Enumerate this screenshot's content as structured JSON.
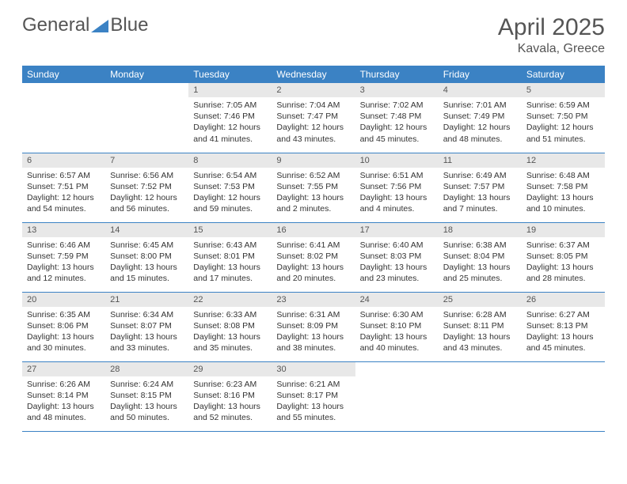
{
  "logo": {
    "text1": "General",
    "text2": "Blue"
  },
  "title": "April 2025",
  "location": "Kavala, Greece",
  "colors": {
    "accent": "#3b82c4",
    "dayBg": "#e8e8e8",
    "text": "#333333"
  },
  "weekdays": [
    "Sunday",
    "Monday",
    "Tuesday",
    "Wednesday",
    "Thursday",
    "Friday",
    "Saturday"
  ],
  "weeks": [
    [
      null,
      null,
      {
        "n": "1",
        "sr": "7:05 AM",
        "ss": "7:46 PM",
        "dl": "12 hours and 41 minutes."
      },
      {
        "n": "2",
        "sr": "7:04 AM",
        "ss": "7:47 PM",
        "dl": "12 hours and 43 minutes."
      },
      {
        "n": "3",
        "sr": "7:02 AM",
        "ss": "7:48 PM",
        "dl": "12 hours and 45 minutes."
      },
      {
        "n": "4",
        "sr": "7:01 AM",
        "ss": "7:49 PM",
        "dl": "12 hours and 48 minutes."
      },
      {
        "n": "5",
        "sr": "6:59 AM",
        "ss": "7:50 PM",
        "dl": "12 hours and 51 minutes."
      }
    ],
    [
      {
        "n": "6",
        "sr": "6:57 AM",
        "ss": "7:51 PM",
        "dl": "12 hours and 54 minutes."
      },
      {
        "n": "7",
        "sr": "6:56 AM",
        "ss": "7:52 PM",
        "dl": "12 hours and 56 minutes."
      },
      {
        "n": "8",
        "sr": "6:54 AM",
        "ss": "7:53 PM",
        "dl": "12 hours and 59 minutes."
      },
      {
        "n": "9",
        "sr": "6:52 AM",
        "ss": "7:55 PM",
        "dl": "13 hours and 2 minutes."
      },
      {
        "n": "10",
        "sr": "6:51 AM",
        "ss": "7:56 PM",
        "dl": "13 hours and 4 minutes."
      },
      {
        "n": "11",
        "sr": "6:49 AM",
        "ss": "7:57 PM",
        "dl": "13 hours and 7 minutes."
      },
      {
        "n": "12",
        "sr": "6:48 AM",
        "ss": "7:58 PM",
        "dl": "13 hours and 10 minutes."
      }
    ],
    [
      {
        "n": "13",
        "sr": "6:46 AM",
        "ss": "7:59 PM",
        "dl": "13 hours and 12 minutes."
      },
      {
        "n": "14",
        "sr": "6:45 AM",
        "ss": "8:00 PM",
        "dl": "13 hours and 15 minutes."
      },
      {
        "n": "15",
        "sr": "6:43 AM",
        "ss": "8:01 PM",
        "dl": "13 hours and 17 minutes."
      },
      {
        "n": "16",
        "sr": "6:41 AM",
        "ss": "8:02 PM",
        "dl": "13 hours and 20 minutes."
      },
      {
        "n": "17",
        "sr": "6:40 AM",
        "ss": "8:03 PM",
        "dl": "13 hours and 23 minutes."
      },
      {
        "n": "18",
        "sr": "6:38 AM",
        "ss": "8:04 PM",
        "dl": "13 hours and 25 minutes."
      },
      {
        "n": "19",
        "sr": "6:37 AM",
        "ss": "8:05 PM",
        "dl": "13 hours and 28 minutes."
      }
    ],
    [
      {
        "n": "20",
        "sr": "6:35 AM",
        "ss": "8:06 PM",
        "dl": "13 hours and 30 minutes."
      },
      {
        "n": "21",
        "sr": "6:34 AM",
        "ss": "8:07 PM",
        "dl": "13 hours and 33 minutes."
      },
      {
        "n": "22",
        "sr": "6:33 AM",
        "ss": "8:08 PM",
        "dl": "13 hours and 35 minutes."
      },
      {
        "n": "23",
        "sr": "6:31 AM",
        "ss": "8:09 PM",
        "dl": "13 hours and 38 minutes."
      },
      {
        "n": "24",
        "sr": "6:30 AM",
        "ss": "8:10 PM",
        "dl": "13 hours and 40 minutes."
      },
      {
        "n": "25",
        "sr": "6:28 AM",
        "ss": "8:11 PM",
        "dl": "13 hours and 43 minutes."
      },
      {
        "n": "26",
        "sr": "6:27 AM",
        "ss": "8:13 PM",
        "dl": "13 hours and 45 minutes."
      }
    ],
    [
      {
        "n": "27",
        "sr": "6:26 AM",
        "ss": "8:14 PM",
        "dl": "13 hours and 48 minutes."
      },
      {
        "n": "28",
        "sr": "6:24 AM",
        "ss": "8:15 PM",
        "dl": "13 hours and 50 minutes."
      },
      {
        "n": "29",
        "sr": "6:23 AM",
        "ss": "8:16 PM",
        "dl": "13 hours and 52 minutes."
      },
      {
        "n": "30",
        "sr": "6:21 AM",
        "ss": "8:17 PM",
        "dl": "13 hours and 55 minutes."
      },
      null,
      null,
      null
    ]
  ]
}
